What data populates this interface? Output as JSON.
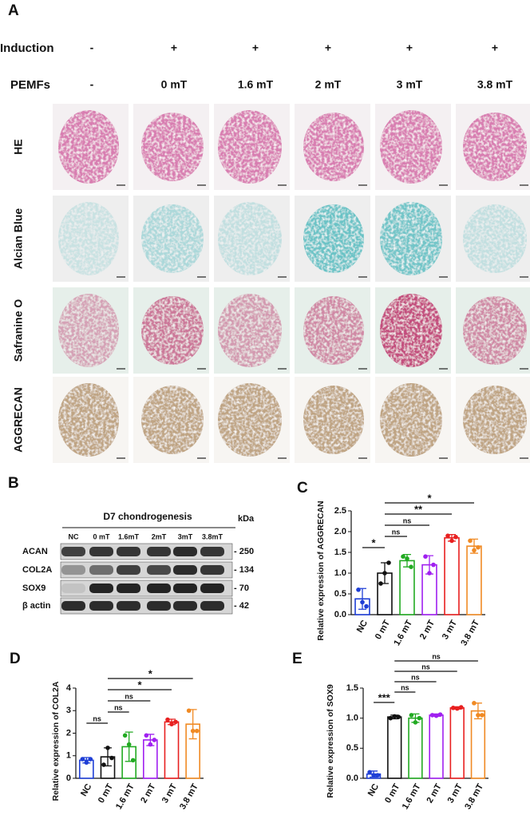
{
  "panel_a": {
    "label": "A",
    "rows": [
      {
        "name": "Induction",
        "values": [
          "-",
          "+",
          "+",
          "+",
          "+",
          "+"
        ]
      },
      {
        "name": "PEMFs",
        "values": [
          "-",
          "0 mT",
          "1.6 mT",
          "2 mT",
          "3 mT",
          "3.8 mT"
        ]
      }
    ],
    "stains": [
      "HE",
      "Alcian Blue",
      "Safranine O",
      "AGGRECAN"
    ]
  },
  "panel_b": {
    "label": "B",
    "title": "D7 chondrogenesis",
    "lanes": [
      "NC",
      "0 mT",
      "1.6mT",
      "2mT",
      "3mT",
      "3.8mT"
    ],
    "unit": "kDa",
    "proteins": [
      {
        "name": "ACAN",
        "marker": "- 250"
      },
      {
        "name": "COL2A",
        "marker": "- 134"
      },
      {
        "name": "SOX9",
        "marker": "- 70"
      },
      {
        "name": "β actin",
        "marker": "- 42"
      }
    ]
  },
  "chart_data": [
    {
      "type": "bar",
      "label": "C",
      "y_label": "Relative expression of AGGRECAN",
      "categories": [
        "NC",
        "0 mT",
        "1.6 mT",
        "2 mT",
        "3 mT",
        "3.8 mT"
      ],
      "colors": [
        "#1f3fd6",
        "#111111",
        "#22aa22",
        "#a020f0",
        "#e82020",
        "#f08a24"
      ],
      "values": [
        0.38,
        1.0,
        1.3,
        1.2,
        1.85,
        1.65
      ],
      "errors": [
        0.25,
        0.25,
        0.15,
        0.22,
        0.08,
        0.17
      ],
      "points": [
        [
          0.6,
          0.3,
          0.2
        ],
        [
          0.75,
          1.0,
          1.25
        ],
        [
          1.4,
          1.35,
          1.15
        ],
        [
          1.4,
          1.0,
          1.2
        ],
        [
          1.9,
          1.78,
          1.87
        ],
        [
          1.78,
          1.55,
          1.62
        ]
      ],
      "ylim": [
        0,
        2.5
      ],
      "yticks": [
        {
          "value": 0,
          "label": "0.0"
        },
        0.5,
        {
          "value": 1,
          "label": "1.0"
        },
        1.5,
        {
          "value": 2,
          "label": "2.0"
        },
        2.5
      ],
      "significance": [
        {
          "groups": [
            "NC",
            "0 mT"
          ],
          "label": "*"
        },
        {
          "groups": [
            "0 mT",
            "1.6 mT"
          ],
          "label": "ns"
        },
        {
          "groups": [
            "0 mT",
            "2 mT"
          ],
          "label": "ns"
        },
        {
          "groups": [
            "0 mT",
            "3 mT"
          ],
          "label": "**"
        },
        {
          "groups": [
            "0 mT",
            "3.8 mT"
          ],
          "label": "*"
        }
      ]
    },
    {
      "type": "bar",
      "label": "D",
      "y_label": "Relative expression of COL2A",
      "categories": [
        "NC",
        "0 mT",
        "1.6 mT",
        "2 mT",
        "3 mT",
        "3.8 mT"
      ],
      "colors": [
        "#1f3fd6",
        "#111111",
        "#22aa22",
        "#a020f0",
        "#e82020",
        "#f08a24"
      ],
      "values": [
        0.8,
        0.95,
        1.4,
        1.7,
        2.5,
        2.4
      ],
      "errors": [
        0.12,
        0.4,
        0.65,
        0.25,
        0.12,
        0.65
      ],
      "points": [
        [
          0.85,
          0.7,
          0.85
        ],
        [
          0.6,
          1.35,
          0.9
        ],
        [
          1.9,
          1.5,
          0.8
        ],
        [
          1.9,
          1.5,
          1.7
        ],
        [
          2.6,
          2.4,
          2.5
        ],
        [
          3.0,
          2.1,
          2.1
        ]
      ],
      "ylim": [
        0,
        4
      ],
      "yticks": [
        0,
        1,
        2,
        3,
        4
      ],
      "significance": [
        {
          "groups": [
            "NC",
            "0 mT"
          ],
          "label": "ns"
        },
        {
          "groups": [
            "0 mT",
            "1.6 mT"
          ],
          "label": "ns"
        },
        {
          "groups": [
            "0 mT",
            "2 mT"
          ],
          "label": "ns"
        },
        {
          "groups": [
            "0 mT",
            "3 mT"
          ],
          "label": "*"
        },
        {
          "groups": [
            "0 mT",
            "3.8 mT"
          ],
          "label": "*"
        }
      ]
    },
    {
      "type": "bar",
      "label": "E",
      "y_label": "Relative expression of SOX9",
      "categories": [
        "NC",
        "0 mT",
        "1.6 mT",
        "2 mT",
        "3 mT",
        "3.8 mT"
      ],
      "colors": [
        "#1f3fd6",
        "#111111",
        "#22aa22",
        "#a020f0",
        "#e82020",
        "#f08a24"
      ],
      "values": [
        0.07,
        1.02,
        1.0,
        1.05,
        1.17,
        1.12
      ],
      "errors": [
        0.05,
        0.03,
        0.07,
        0.02,
        0.02,
        0.13
      ],
      "points": [
        [
          0.1,
          0.05,
          0.05
        ],
        [
          1.0,
          1.03,
          1.02
        ],
        [
          1.05,
          0.93,
          1.0
        ],
        [
          1.05,
          1.04,
          1.06
        ],
        [
          1.17,
          1.16,
          1.18
        ],
        [
          1.25,
          1.05,
          1.05
        ]
      ],
      "ylim": [
        0,
        1.5
      ],
      "yticks": [
        {
          "value": 0,
          "label": "0.0"
        },
        0.5,
        {
          "value": 1,
          "label": "1.0"
        },
        1.5
      ],
      "significance": [
        {
          "groups": [
            "NC",
            "0 mT"
          ],
          "label": "***"
        },
        {
          "groups": [
            "0 mT",
            "1.6 mT"
          ],
          "label": "ns"
        },
        {
          "groups": [
            "0 mT",
            "2 mT"
          ],
          "label": "ns"
        },
        {
          "groups": [
            "0 mT",
            "3 mT"
          ],
          "label": "ns"
        },
        {
          "groups": [
            "0 mT",
            "3.8 mT"
          ],
          "label": "ns"
        }
      ]
    }
  ]
}
